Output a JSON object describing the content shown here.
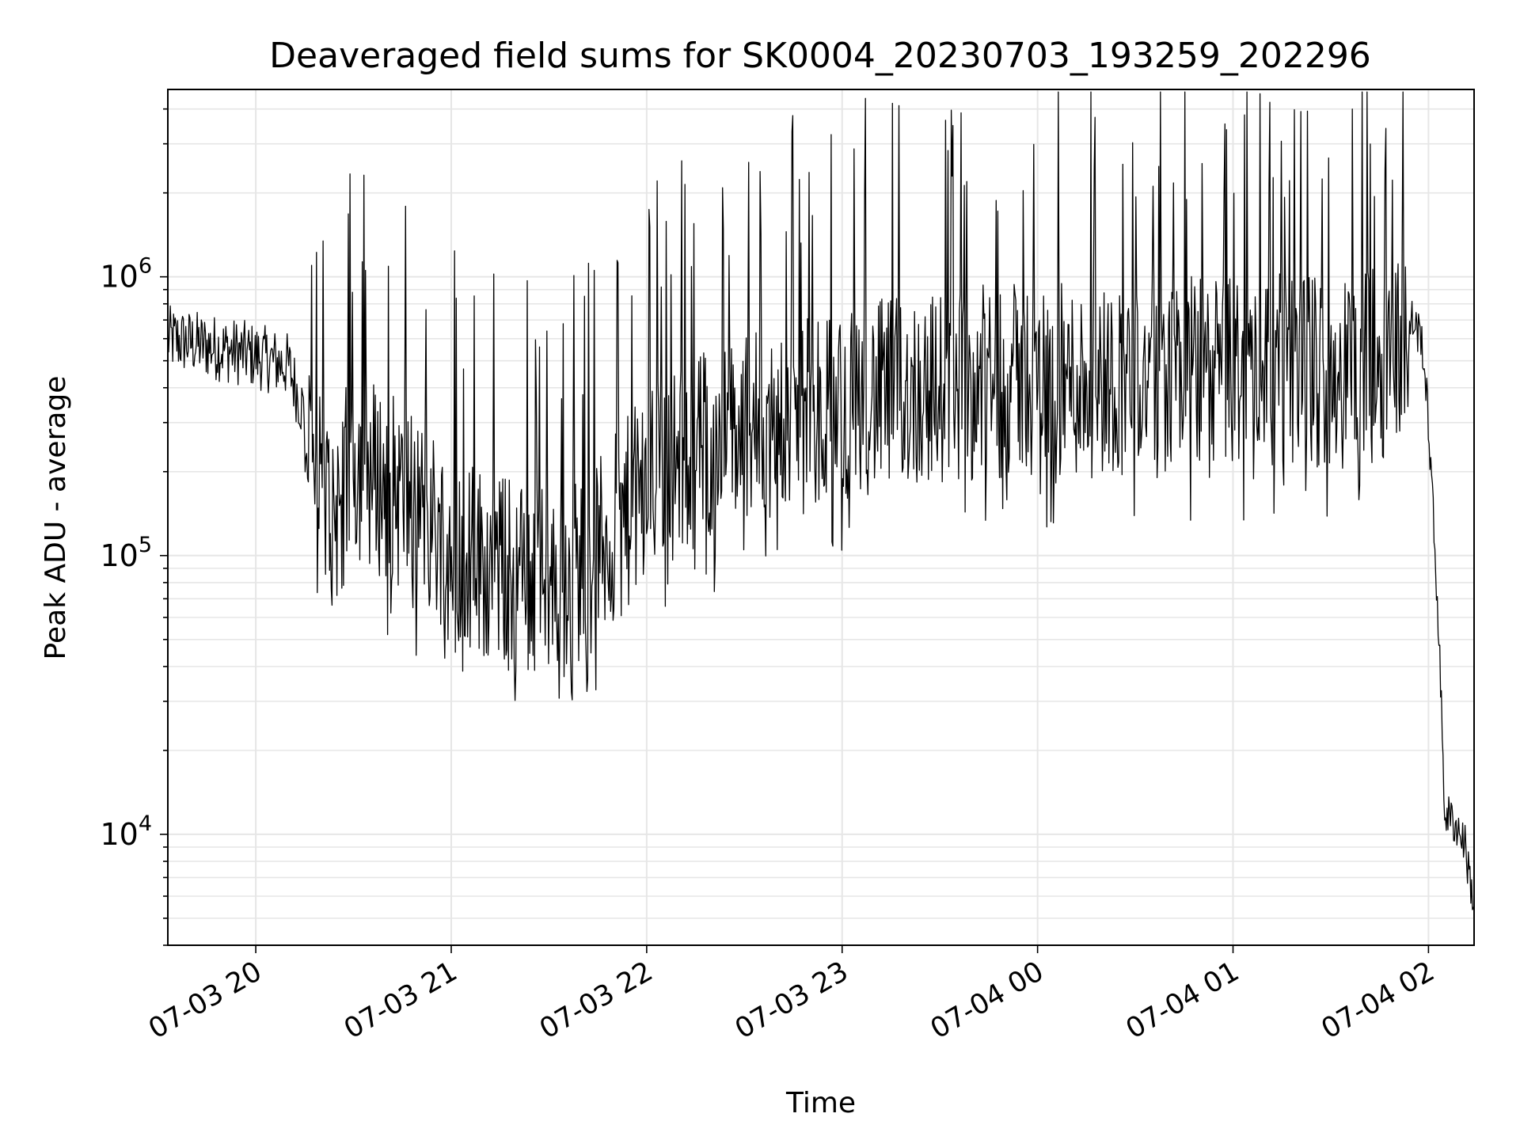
{
  "chart_data": {
    "type": "line",
    "title": "Deaveraged field sums for SK0004_20230703_193259_202296",
    "xlabel": "Time",
    "ylabel": "Peak ADU - average",
    "yscale": "log",
    "grid": true,
    "line_color": "#000000",
    "grid_color": "#e6e6e6",
    "xlim": [
      "2023-07-03 19:33",
      "2023-07-04 02:14"
    ],
    "ylim": [
      4000,
      4700000
    ],
    "x_ticks": [
      {
        "t": "2023-07-03 20:00",
        "label": "07-03 20"
      },
      {
        "t": "2023-07-03 21:00",
        "label": "07-03 21"
      },
      {
        "t": "2023-07-03 22:00",
        "label": "07-03 22"
      },
      {
        "t": "2023-07-03 23:00",
        "label": "07-03 23"
      },
      {
        "t": "2023-07-04 00:00",
        "label": "07-04 00"
      },
      {
        "t": "2023-07-04 01:00",
        "label": "07-04 01"
      },
      {
        "t": "2023-07-04 02:00",
        "label": "07-04 02"
      }
    ],
    "y_ticks": [
      {
        "value": 10000,
        "base": "10",
        "exp": "4"
      },
      {
        "value": 100000,
        "base": "10",
        "exp": "5"
      },
      {
        "value": 1000000,
        "base": "10",
        "exp": "6"
      }
    ],
    "series": [
      {
        "x": [
          "2023-07-03 19:33",
          "2023-07-03 19:40",
          "2023-07-03 19:50",
          "2023-07-03 20:00",
          "2023-07-03 20:10",
          "2023-07-03 20:15",
          "2023-07-03 20:20",
          "2023-07-03 20:25",
          "2023-07-03 20:30",
          "2023-07-03 20:40",
          "2023-07-03 20:50",
          "2023-07-03 21:00",
          "2023-07-03 21:10",
          "2023-07-03 21:20",
          "2023-07-03 21:30",
          "2023-07-03 21:40",
          "2023-07-03 21:50",
          "2023-07-03 22:00",
          "2023-07-03 22:10",
          "2023-07-03 22:20",
          "2023-07-03 22:30",
          "2023-07-03 22:40",
          "2023-07-03 22:50",
          "2023-07-03 23:00",
          "2023-07-03 23:15",
          "2023-07-03 23:30",
          "2023-07-03 23:45",
          "2023-07-04 00:00",
          "2023-07-04 00:15",
          "2023-07-04 00:30",
          "2023-07-04 00:45",
          "2023-07-04 01:00",
          "2023-07-04 01:15",
          "2023-07-04 01:30",
          "2023-07-04 01:45",
          "2023-07-04 01:55",
          "2023-07-04 01:58",
          "2023-07-04 02:00",
          "2023-07-04 02:03",
          "2023-07-04 02:05",
          "2023-07-04 02:08",
          "2023-07-04 02:11",
          "2023-07-04 02:14"
        ],
        "y": [
          600000,
          580000,
          550000,
          520000,
          480000,
          320000,
          160000,
          150000,
          220000,
          180000,
          150000,
          110000,
          95000,
          85000,
          80000,
          90000,
          120000,
          180000,
          220000,
          260000,
          280000,
          300000,
          320000,
          350000,
          380000,
          400000,
          420000,
          430000,
          420000,
          440000,
          450000,
          460000,
          470000,
          460000,
          480000,
          700000,
          600000,
          300000,
          60000,
          12000,
          11000,
          9500,
          5500
        ]
      }
    ]
  }
}
